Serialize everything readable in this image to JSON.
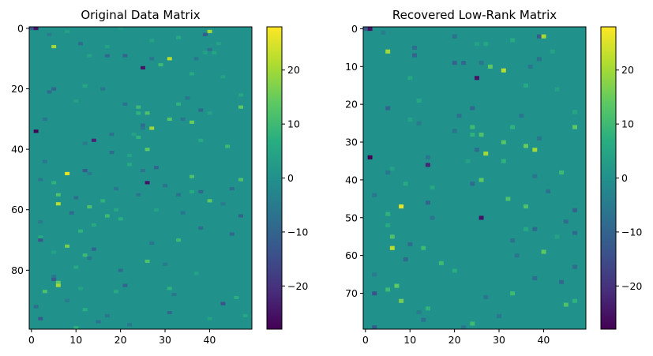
{
  "chart_data": [
    {
      "type": "heatmap",
      "title": "Original Data Matrix",
      "rows": 100,
      "cols": 50,
      "background_value": 0,
      "x_ticks": [
        0,
        10,
        20,
        30,
        40
      ],
      "y_ticks": [
        0,
        20,
        40,
        60,
        80
      ],
      "colorbar": {
        "range": [
          -28,
          28
        ],
        "ticks": [
          20,
          10,
          0,
          -10,
          -20
        ],
        "tick_labels": [
          "20",
          "10",
          "0",
          "−10",
          "−20"
        ]
      },
      "colormap": "viridis",
      "grid": false,
      "sparse_cells": [
        {
          "r": 0,
          "c": 0,
          "v": -12
        },
        {
          "r": 0,
          "c": 1,
          "v": -25
        },
        {
          "r": 1,
          "c": 8,
          "v": 4
        },
        {
          "r": 0,
          "c": 20,
          "v": 2
        },
        {
          "r": 2,
          "c": 4,
          "v": -5
        },
        {
          "r": 1,
          "c": 40,
          "v": 20
        },
        {
          "r": 2,
          "c": 39,
          "v": -12
        },
        {
          "r": 3,
          "c": 33,
          "v": 6
        },
        {
          "r": 4,
          "c": 27,
          "v": 4
        },
        {
          "r": 5,
          "c": 11,
          "v": -8
        },
        {
          "r": 5,
          "c": 42,
          "v": 4
        },
        {
          "r": 6,
          "c": 5,
          "v": 20
        },
        {
          "r": 6,
          "c": 17,
          "v": 4
        },
        {
          "r": 7,
          "c": 40,
          "v": -7
        },
        {
          "r": 8,
          "c": 39,
          "v": 4
        },
        {
          "r": 8,
          "c": 41,
          "v": 5
        },
        {
          "r": 9,
          "c": 17,
          "v": -9
        },
        {
          "r": 9,
          "c": 21,
          "v": -10
        },
        {
          "r": 9,
          "c": 13,
          "v": 4
        },
        {
          "r": 10,
          "c": 27,
          "v": -6
        },
        {
          "r": 10,
          "c": 31,
          "v": 22
        },
        {
          "r": 10,
          "c": 37,
          "v": -6
        },
        {
          "r": 13,
          "c": 25,
          "v": -25
        },
        {
          "r": 12,
          "c": 29,
          "v": 10
        },
        {
          "r": 15,
          "c": 36,
          "v": 6
        },
        {
          "r": 16,
          "c": 43,
          "v": 4
        },
        {
          "r": 20,
          "c": 5,
          "v": -10
        },
        {
          "r": 19,
          "c": 12,
          "v": 5
        },
        {
          "r": 20,
          "c": 16,
          "v": -6
        },
        {
          "r": 21,
          "c": 4,
          "v": -8
        },
        {
          "r": 22,
          "c": 47,
          "v": 5
        },
        {
          "r": 23,
          "c": 35,
          "v": -6
        },
        {
          "r": 24,
          "c": 10,
          "v": 4
        },
        {
          "r": 25,
          "c": 21,
          "v": -7
        },
        {
          "r": 25,
          "c": 33,
          "v": 8
        },
        {
          "r": 26,
          "c": 24,
          "v": 10
        },
        {
          "r": 26,
          "c": 47,
          "v": 14
        },
        {
          "r": 27,
          "c": 38,
          "v": -9
        },
        {
          "r": 28,
          "c": 24,
          "v": 8
        },
        {
          "r": 28,
          "c": 26,
          "v": 12
        },
        {
          "r": 28,
          "c": 40,
          "v": 4
        },
        {
          "r": 30,
          "c": 3,
          "v": -6
        },
        {
          "r": 30,
          "c": 31,
          "v": 13
        },
        {
          "r": 30,
          "c": 34,
          "v": -6
        },
        {
          "r": 31,
          "c": 36,
          "v": 15
        },
        {
          "r": 32,
          "c": 25,
          "v": -8
        },
        {
          "r": 33,
          "c": 27,
          "v": 20
        },
        {
          "r": 33,
          "c": 25,
          "v": -5
        },
        {
          "r": 34,
          "c": 1,
          "v": -28
        },
        {
          "r": 35,
          "c": 18,
          "v": -7
        },
        {
          "r": 35,
          "c": 23,
          "v": 4
        },
        {
          "r": 36,
          "c": 24,
          "v": 8
        },
        {
          "r": 37,
          "c": 14,
          "v": -22
        },
        {
          "r": 37,
          "c": 38,
          "v": 6
        },
        {
          "r": 38,
          "c": 12,
          "v": -5
        },
        {
          "r": 39,
          "c": 44,
          "v": 10
        },
        {
          "r": 40,
          "c": 26,
          "v": 14
        },
        {
          "r": 41,
          "c": 18,
          "v": -8
        },
        {
          "r": 42,
          "c": 22,
          "v": 4
        },
        {
          "r": 44,
          "c": 3,
          "v": -6
        },
        {
          "r": 45,
          "c": 22,
          "v": 6
        },
        {
          "r": 46,
          "c": 28,
          "v": -10
        },
        {
          "r": 47,
          "c": 12,
          "v": -12
        },
        {
          "r": 47,
          "c": 25,
          "v": -6
        },
        {
          "r": 48,
          "c": 8,
          "v": 26
        },
        {
          "r": 48,
          "c": 13,
          "v": -5
        },
        {
          "r": 49,
          "c": 36,
          "v": 12
        },
        {
          "r": 50,
          "c": 2,
          "v": -6
        },
        {
          "r": 50,
          "c": 47,
          "v": 12
        },
        {
          "r": 51,
          "c": 26,
          "v": -25
        },
        {
          "r": 51,
          "c": 5,
          "v": 8
        },
        {
          "r": 52,
          "c": 30,
          "v": -7
        },
        {
          "r": 53,
          "c": 19,
          "v": -6
        },
        {
          "r": 53,
          "c": 45,
          "v": -8
        },
        {
          "r": 54,
          "c": 36,
          "v": 6
        },
        {
          "r": 54,
          "c": 38,
          "v": -9
        },
        {
          "r": 55,
          "c": 6,
          "v": 12
        },
        {
          "r": 55,
          "c": 24,
          "v": -6
        },
        {
          "r": 55,
          "c": 33,
          "v": -7
        },
        {
          "r": 56,
          "c": 10,
          "v": -8
        },
        {
          "r": 57,
          "c": 16,
          "v": 8
        },
        {
          "r": 57,
          "c": 40,
          "v": 14
        },
        {
          "r": 58,
          "c": 6,
          "v": 22
        },
        {
          "r": 58,
          "c": 43,
          "v": -5
        },
        {
          "r": 59,
          "c": 13,
          "v": 12
        },
        {
          "r": 60,
          "c": 19,
          "v": 5
        },
        {
          "r": 60,
          "c": 28,
          "v": 4
        },
        {
          "r": 61,
          "c": 9,
          "v": -9
        },
        {
          "r": 61,
          "c": 34,
          "v": -6
        },
        {
          "r": 62,
          "c": 17,
          "v": 10
        },
        {
          "r": 62,
          "c": 47,
          "v": -10
        },
        {
          "r": 63,
          "c": 20,
          "v": 7
        },
        {
          "r": 64,
          "c": 2,
          "v": -5
        },
        {
          "r": 65,
          "c": 14,
          "v": 6
        },
        {
          "r": 66,
          "c": 38,
          "v": -8
        },
        {
          "r": 67,
          "c": 11,
          "v": 8
        },
        {
          "r": 68,
          "c": 45,
          "v": -9
        },
        {
          "r": 69,
          "c": 2,
          "v": 6
        },
        {
          "r": 70,
          "c": 2,
          "v": -14
        },
        {
          "r": 70,
          "c": 33,
          "v": 10
        },
        {
          "r": 71,
          "c": 27,
          "v": -6
        },
        {
          "r": 72,
          "c": 8,
          "v": 16
        },
        {
          "r": 73,
          "c": 14,
          "v": -10
        },
        {
          "r": 74,
          "c": 5,
          "v": 4
        },
        {
          "r": 75,
          "c": 12,
          "v": 10
        },
        {
          "r": 76,
          "c": 13,
          "v": -6
        },
        {
          "r": 77,
          "c": 26,
          "v": 12
        },
        {
          "r": 78,
          "c": 30,
          "v": -5
        },
        {
          "r": 79,
          "c": 10,
          "v": 6
        },
        {
          "r": 80,
          "c": 20,
          "v": -8
        },
        {
          "r": 81,
          "c": 37,
          "v": 4
        },
        {
          "r": 82,
          "c": 5,
          "v": -6
        },
        {
          "r": 83,
          "c": 5,
          "v": -12
        },
        {
          "r": 84,
          "c": 6,
          "v": 14
        },
        {
          "r": 85,
          "c": 6,
          "v": 20
        },
        {
          "r": 85,
          "c": 21,
          "v": -10
        },
        {
          "r": 86,
          "c": 11,
          "v": 4
        },
        {
          "r": 86,
          "c": 31,
          "v": 8
        },
        {
          "r": 87,
          "c": 3,
          "v": 12
        },
        {
          "r": 87,
          "c": 19,
          "v": 6
        },
        {
          "r": 88,
          "c": 32,
          "v": -6
        },
        {
          "r": 89,
          "c": 46,
          "v": 7
        },
        {
          "r": 90,
          "c": 8,
          "v": -5
        },
        {
          "r": 91,
          "c": 43,
          "v": -14
        },
        {
          "r": 92,
          "c": 1,
          "v": -8
        },
        {
          "r": 93,
          "c": 12,
          "v": 7
        },
        {
          "r": 94,
          "c": 31,
          "v": -9
        },
        {
          "r": 95,
          "c": 17,
          "v": -6
        },
        {
          "r": 95,
          "c": 48,
          "v": 5
        },
        {
          "r": 96,
          "c": 2,
          "v": -12
        },
        {
          "r": 96,
          "c": 40,
          "v": 4
        },
        {
          "r": 97,
          "c": 15,
          "v": -7
        },
        {
          "r": 98,
          "c": 22,
          "v": -6
        },
        {
          "r": 99,
          "c": 10,
          "v": 8
        }
      ]
    },
    {
      "type": "heatmap",
      "title": "Recovered Low-Rank Matrix",
      "rows": 80,
      "cols": 50,
      "background_value": 0,
      "x_ticks": [
        0,
        10,
        20,
        30,
        40
      ],
      "y_ticks": [
        0,
        10,
        20,
        30,
        40,
        50,
        60,
        70
      ],
      "colorbar": {
        "range": [
          -28,
          28
        ],
        "ticks": [
          20,
          10,
          0,
          -10,
          -20
        ],
        "tick_labels": [
          "20",
          "10",
          "0",
          "−10",
          "−20"
        ]
      },
      "colormap": "viridis",
      "grid": false,
      "sparse_cells": [
        {
          "r": 0,
          "c": 0,
          "v": -12
        },
        {
          "r": 0,
          "c": 1,
          "v": -25
        },
        {
          "r": 1,
          "c": 4,
          "v": -4
        },
        {
          "r": 2,
          "c": 20,
          "v": -7
        },
        {
          "r": 2,
          "c": 39,
          "v": -12
        },
        {
          "r": 2,
          "c": 40,
          "v": 20
        },
        {
          "r": 3,
          "c": 33,
          "v": 6
        },
        {
          "r": 4,
          "c": 25,
          "v": 4
        },
        {
          "r": 4,
          "c": 27,
          "v": 5
        },
        {
          "r": 5,
          "c": 11,
          "v": -8
        },
        {
          "r": 6,
          "c": 5,
          "v": 20
        },
        {
          "r": 6,
          "c": 42,
          "v": 4
        },
        {
          "r": 7,
          "c": 11,
          "v": -10
        },
        {
          "r": 8,
          "c": 39,
          "v": -7
        },
        {
          "r": 9,
          "c": 20,
          "v": -10
        },
        {
          "r": 9,
          "c": 22,
          "v": -9
        },
        {
          "r": 9,
          "c": 26,
          "v": -6
        },
        {
          "r": 10,
          "c": 28,
          "v": 14
        },
        {
          "r": 10,
          "c": 37,
          "v": -6
        },
        {
          "r": 11,
          "c": 31,
          "v": 22
        },
        {
          "r": 13,
          "c": 25,
          "v": -25
        },
        {
          "r": 13,
          "c": 10,
          "v": 5
        },
        {
          "r": 15,
          "c": 36,
          "v": 6
        },
        {
          "r": 16,
          "c": 43,
          "v": 4
        },
        {
          "r": 19,
          "c": 12,
          "v": 5
        },
        {
          "r": 21,
          "c": 5,
          "v": -10
        },
        {
          "r": 21,
          "c": 24,
          "v": -9
        },
        {
          "r": 22,
          "c": 47,
          "v": 5
        },
        {
          "r": 23,
          "c": 21,
          "v": -7
        },
        {
          "r": 23,
          "c": 35,
          "v": -6
        },
        {
          "r": 24,
          "c": 10,
          "v": 4
        },
        {
          "r": 25,
          "c": 12,
          "v": -5
        },
        {
          "r": 26,
          "c": 24,
          "v": 10
        },
        {
          "r": 26,
          "c": 33,
          "v": 8
        },
        {
          "r": 26,
          "c": 47,
          "v": 14
        },
        {
          "r": 27,
          "c": 20,
          "v": -6
        },
        {
          "r": 28,
          "c": 24,
          "v": 8
        },
        {
          "r": 28,
          "c": 26,
          "v": 12
        },
        {
          "r": 29,
          "c": 39,
          "v": -6
        },
        {
          "r": 30,
          "c": 31,
          "v": 13
        },
        {
          "r": 31,
          "c": 36,
          "v": 15
        },
        {
          "r": 32,
          "c": 25,
          "v": -8
        },
        {
          "r": 32,
          "c": 38,
          "v": 20
        },
        {
          "r": 33,
          "c": 27,
          "v": 20
        },
        {
          "r": 34,
          "c": 1,
          "v": -28
        },
        {
          "r": 34,
          "c": 14,
          "v": -6
        },
        {
          "r": 35,
          "c": 31,
          "v": 8
        },
        {
          "r": 35,
          "c": 23,
          "v": 4
        },
        {
          "r": 36,
          "c": 14,
          "v": -22
        },
        {
          "r": 37,
          "c": 6,
          "v": 4
        },
        {
          "r": 38,
          "c": 5,
          "v": -6
        },
        {
          "r": 38,
          "c": 44,
          "v": 10
        },
        {
          "r": 39,
          "c": 38,
          "v": -6
        },
        {
          "r": 40,
          "c": 26,
          "v": 14
        },
        {
          "r": 41,
          "c": 9,
          "v": 6
        },
        {
          "r": 41,
          "c": 24,
          "v": -8
        },
        {
          "r": 42,
          "c": 15,
          "v": 5
        },
        {
          "r": 43,
          "c": 41,
          "v": -7
        },
        {
          "r": 44,
          "c": 2,
          "v": -6
        },
        {
          "r": 45,
          "c": 32,
          "v": 12
        },
        {
          "r": 46,
          "c": 14,
          "v": -10
        },
        {
          "r": 47,
          "c": 8,
          "v": 26
        },
        {
          "r": 47,
          "c": 36,
          "v": 12
        },
        {
          "r": 48,
          "c": 47,
          "v": -10
        },
        {
          "r": 49,
          "c": 5,
          "v": 8
        },
        {
          "r": 50,
          "c": 26,
          "v": -25
        },
        {
          "r": 50,
          "c": 15,
          "v": -6
        },
        {
          "r": 51,
          "c": 45,
          "v": -8
        },
        {
          "r": 52,
          "c": 5,
          "v": 6
        },
        {
          "r": 53,
          "c": 36,
          "v": 6
        },
        {
          "r": 53,
          "c": 38,
          "v": -9
        },
        {
          "r": 54,
          "c": 47,
          "v": -9
        },
        {
          "r": 55,
          "c": 6,
          "v": 12
        },
        {
          "r": 55,
          "c": 43,
          "v": 4
        },
        {
          "r": 56,
          "c": 33,
          "v": -7
        },
        {
          "r": 57,
          "c": 10,
          "v": -8
        },
        {
          "r": 58,
          "c": 6,
          "v": 22
        },
        {
          "r": 58,
          "c": 13,
          "v": 10
        },
        {
          "r": 59,
          "c": 40,
          "v": 14
        },
        {
          "r": 60,
          "c": 34,
          "v": -6
        },
        {
          "r": 61,
          "c": 9,
          "v": -9
        },
        {
          "r": 62,
          "c": 17,
          "v": 10
        },
        {
          "r": 63,
          "c": 47,
          "v": -8
        },
        {
          "r": 64,
          "c": 20,
          "v": 7
        },
        {
          "r": 65,
          "c": 2,
          "v": -5
        },
        {
          "r": 66,
          "c": 38,
          "v": -8
        },
        {
          "r": 67,
          "c": 44,
          "v": -9
        },
        {
          "r": 68,
          "c": 7,
          "v": 14
        },
        {
          "r": 69,
          "c": 5,
          "v": 10
        },
        {
          "r": 70,
          "c": 2,
          "v": -14
        },
        {
          "r": 70,
          "c": 33,
          "v": 10
        },
        {
          "r": 71,
          "c": 27,
          "v": -6
        },
        {
          "r": 72,
          "c": 8,
          "v": 16
        },
        {
          "r": 72,
          "c": 47,
          "v": 8
        },
        {
          "r": 73,
          "c": 45,
          "v": 12
        },
        {
          "r": 74,
          "c": 14,
          "v": 8
        },
        {
          "r": 75,
          "c": 12,
          "v": -5
        },
        {
          "r": 76,
          "c": 30,
          "v": -6
        },
        {
          "r": 77,
          "c": 13,
          "v": -7
        },
        {
          "r": 78,
          "c": 24,
          "v": 10
        },
        {
          "r": 79,
          "c": 2,
          "v": -12
        },
        {
          "r": 79,
          "c": 22,
          "v": -6
        }
      ]
    }
  ]
}
